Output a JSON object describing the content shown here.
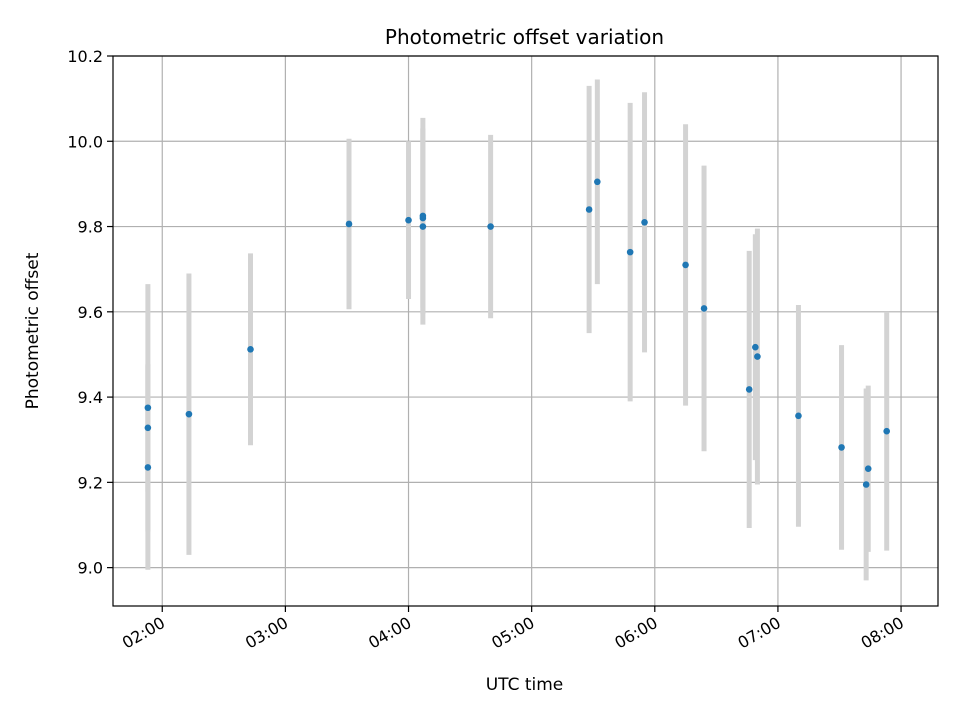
{
  "chart_data": {
    "type": "scatter",
    "title": "Photometric offset variation",
    "xlabel": "UTC time",
    "ylabel": "Photometric offset",
    "x_ticks": [
      "02:00",
      "03:00",
      "04:00",
      "05:00",
      "06:00",
      "07:00",
      "08:00"
    ],
    "y_ticks": [
      "9.0",
      "9.2",
      "9.4",
      "9.6",
      "9.8",
      "10.0",
      "10.2"
    ],
    "xlim": [
      "01:36",
      "08:18"
    ],
    "ylim": [
      8.91,
      10.2
    ],
    "grid": true,
    "marker_color": "#1f77b4",
    "errorbar_color": "#d3d3d3",
    "points": [
      {
        "t": "01:53",
        "y": 9.375,
        "err": 0.29
      },
      {
        "t": "01:53",
        "y": 9.328,
        "err": 0.15
      },
      {
        "t": "01:53",
        "y": 9.235,
        "err": 0.24
      },
      {
        "t": "02:13",
        "y": 9.36,
        "err": 0.33
      },
      {
        "t": "02:43",
        "y": 9.512,
        "err": 0.225
      },
      {
        "t": "03:31",
        "y": 9.806,
        "err": 0.2
      },
      {
        "t": "04:00",
        "y": 9.815,
        "err": 0.185
      },
      {
        "t": "04:07",
        "y": 9.825,
        "err": 0.23
      },
      {
        "t": "04:07",
        "y": 9.82,
        "err": 0.21
      },
      {
        "t": "04:07",
        "y": 9.8,
        "err": 0.23
      },
      {
        "t": "04:40",
        "y": 9.8,
        "err": 0.215
      },
      {
        "t": "05:28",
        "y": 9.84,
        "err": 0.29
      },
      {
        "t": "05:32",
        "y": 9.905,
        "err": 0.24
      },
      {
        "t": "05:48",
        "y": 9.74,
        "err": 0.35
      },
      {
        "t": "05:55",
        "y": 9.81,
        "err": 0.305
      },
      {
        "t": "06:15",
        "y": 9.71,
        "err": 0.33
      },
      {
        "t": "06:24",
        "y": 9.608,
        "err": 0.335
      },
      {
        "t": "06:46",
        "y": 9.418,
        "err": 0.325
      },
      {
        "t": "06:49",
        "y": 9.517,
        "err": 0.265
      },
      {
        "t": "06:50",
        "y": 9.495,
        "err": 0.3
      },
      {
        "t": "07:10",
        "y": 9.356,
        "err": 0.26
      },
      {
        "t": "07:31",
        "y": 9.282,
        "err": 0.24
      },
      {
        "t": "07:43",
        "y": 9.195,
        "err": 0.225
      },
      {
        "t": "07:44",
        "y": 9.232,
        "err": 0.195
      },
      {
        "t": "07:53",
        "y": 9.32,
        "err": 0.28
      }
    ]
  }
}
